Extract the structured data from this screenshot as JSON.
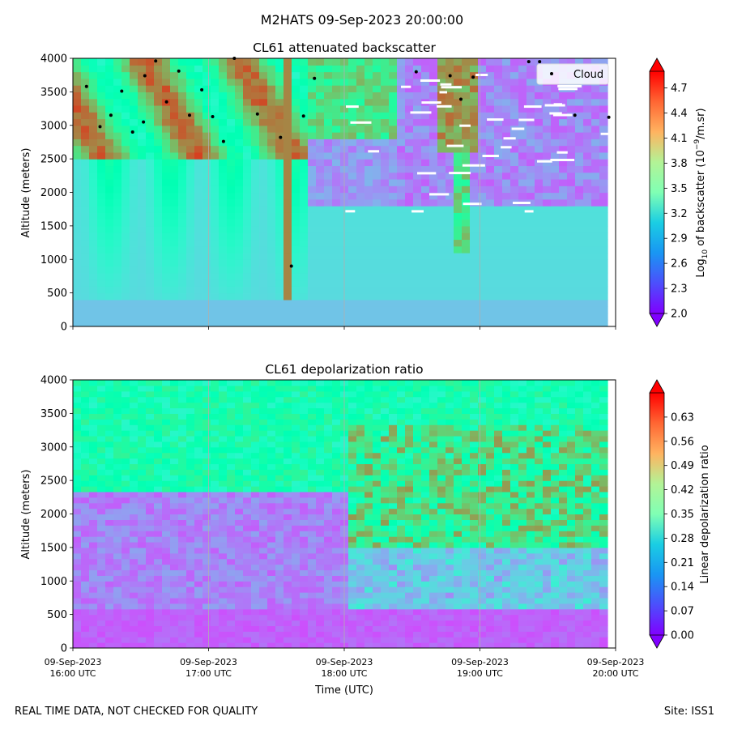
{
  "figure": {
    "suptitle": "M2HATS 09-Sep-2023 20:00:00",
    "footer_left": "REAL TIME DATA, NOT CHECKED FOR QUALITY",
    "footer_right": "Site: ISS1"
  },
  "chart_data": [
    {
      "type": "heatmap",
      "title": "CL61 attenuated backscatter",
      "xlabel": "",
      "ylabel": "Altitude (meters)",
      "ylim": [
        0,
        4000
      ],
      "yticks": [
        0,
        500,
        1000,
        1500,
        2000,
        2500,
        3000,
        3500,
        4000
      ],
      "xlim_hours_utc": [
        16.0,
        20.0
      ],
      "xticks_hours": [
        16,
        17,
        18,
        19,
        20
      ],
      "grid": "vertical lines at hourly ticks",
      "colormap": "rainbow",
      "colorbar": {
        "label": "Log10 of backscatter (10^-9/m.sr)",
        "label_parts": [
          "Log",
          "10",
          " of backscatter (10",
          "−9",
          "/m.sr)"
        ],
        "range": [
          2.0,
          4.9
        ],
        "ticks": [
          "2.0",
          "2.3",
          "2.6",
          "2.9",
          "3.2",
          "3.5",
          "3.8",
          "4.1",
          "4.4",
          "4.7"
        ]
      },
      "legend": {
        "entries": [
          "Cloud"
        ],
        "location": "upper right"
      },
      "cloud_points": [
        {
          "t": 16.1,
          "alt": 3580
        },
        {
          "t": 16.2,
          "alt": 2980
        },
        {
          "t": 16.28,
          "alt": 3150
        },
        {
          "t": 16.36,
          "alt": 3510
        },
        {
          "t": 16.44,
          "alt": 2900
        },
        {
          "t": 16.52,
          "alt": 3050
        },
        {
          "t": 16.53,
          "alt": 3740
        },
        {
          "t": 16.61,
          "alt": 3960
        },
        {
          "t": 16.69,
          "alt": 3350
        },
        {
          "t": 16.78,
          "alt": 3810
        },
        {
          "t": 16.86,
          "alt": 3150
        },
        {
          "t": 16.95,
          "alt": 3530
        },
        {
          "t": 17.03,
          "alt": 3130
        },
        {
          "t": 17.11,
          "alt": 2760
        },
        {
          "t": 17.19,
          "alt": 4000
        },
        {
          "t": 17.36,
          "alt": 3170
        },
        {
          "t": 17.53,
          "alt": 2820
        },
        {
          "t": 17.61,
          "alt": 900
        },
        {
          "t": 17.7,
          "alt": 3140
        },
        {
          "t": 17.78,
          "alt": 3700
        },
        {
          "t": 18.53,
          "alt": 3800
        },
        {
          "t": 18.78,
          "alt": 3740
        },
        {
          "t": 18.86,
          "alt": 3390
        },
        {
          "t": 18.95,
          "alt": 3720
        },
        {
          "t": 19.36,
          "alt": 3950
        },
        {
          "t": 19.44,
          "alt": 3950
        },
        {
          "t": 19.7,
          "alt": 3150
        },
        {
          "t": 19.95,
          "alt": 3120
        }
      ]
    },
    {
      "type": "heatmap",
      "title": "CL61 depolarization ratio",
      "xlabel": "Time (UTC)",
      "ylabel": "Altitude (meters)",
      "ylim": [
        0,
        4000
      ],
      "yticks": [
        0,
        500,
        1000,
        1500,
        2000,
        2500,
        3000,
        3500,
        4000
      ],
      "xlim_hours_utc": [
        16.0,
        20.0
      ],
      "xticks_hours": [
        16,
        17,
        18,
        19,
        20
      ],
      "xtick_labels": [
        [
          "09-Sep-2023",
          "16:00 UTC"
        ],
        [
          "09-Sep-2023",
          "17:00 UTC"
        ],
        [
          "09-Sep-2023",
          "18:00 UTC"
        ],
        [
          "09-Sep-2023",
          "19:00 UTC"
        ],
        [
          "09-Sep-2023",
          "20:00 UTC"
        ]
      ],
      "grid": "vertical lines at hourly ticks",
      "colormap": "rainbow",
      "colorbar": {
        "label": "Linear depolarization ratio",
        "range": [
          0.0,
          0.7
        ],
        "ticks": [
          "0.00",
          "0.07",
          "0.14",
          "0.21",
          "0.28",
          "0.35",
          "0.42",
          "0.49",
          "0.56",
          "0.63"
        ]
      }
    }
  ]
}
